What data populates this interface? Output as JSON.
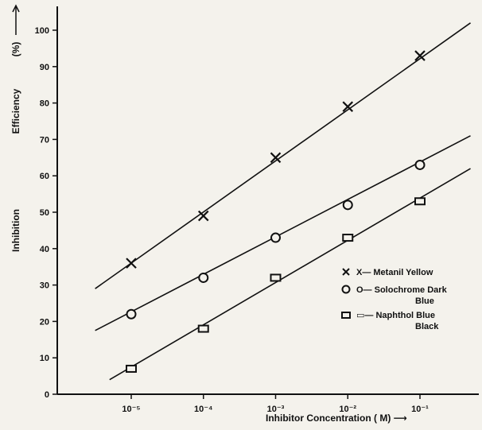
{
  "chart_data": {
    "type": "line",
    "title": "",
    "xlabel": "Inhibitor Concentration ( M) ⟶",
    "ylabel_parts": [
      "Inhibition",
      "Efficiency",
      "(%)"
    ],
    "ylim": [
      0,
      105
    ],
    "x_tick_labels": [
      "10⁻⁵",
      "10⁻⁴",
      "10⁻³",
      "10⁻²",
      "10⁻¹"
    ],
    "x_log10": [
      -5,
      -4,
      -3,
      -2,
      -1
    ],
    "y_ticks": [
      0,
      10,
      20,
      30,
      40,
      50,
      60,
      70,
      80,
      90,
      100
    ],
    "grid": false,
    "legend_position": "right",
    "series": [
      {
        "name": "Metanil Yellow",
        "legend_label": [
          "X— Metanil Yellow"
        ],
        "marker": "x",
        "points": [
          {
            "x": -5,
            "y": 36
          },
          {
            "x": -4,
            "y": 49
          },
          {
            "x": -3,
            "y": 65
          },
          {
            "x": -2,
            "y": 79
          },
          {
            "x": -1,
            "y": 93
          }
        ],
        "fit_line": {
          "x": [
            -5.5,
            -0.3
          ],
          "y": [
            29,
            102
          ]
        }
      },
      {
        "name": "Solochrome Dark Blue",
        "legend_label": [
          "O— Solochrome Dark",
          "Blue"
        ],
        "marker": "circle",
        "points": [
          {
            "x": -5,
            "y": 22
          },
          {
            "x": -4,
            "y": 32
          },
          {
            "x": -3,
            "y": 43
          },
          {
            "x": -2,
            "y": 52
          },
          {
            "x": -1,
            "y": 63
          }
        ],
        "fit_line": {
          "x": [
            -5.5,
            -0.3
          ],
          "y": [
            17.5,
            71
          ]
        }
      },
      {
        "name": "Naphthol Blue Black",
        "legend_label": [
          "▭— Naphthol Blue",
          "Black"
        ],
        "marker": "square",
        "points": [
          {
            "x": -5,
            "y": 7
          },
          {
            "x": -4,
            "y": 18
          },
          {
            "x": -3,
            "y": 32
          },
          {
            "x": -2,
            "y": 43
          },
          {
            "x": -1,
            "y": 53
          }
        ],
        "fit_line": {
          "x": [
            -5.3,
            -0.3
          ],
          "y": [
            4,
            62
          ]
        }
      }
    ]
  }
}
